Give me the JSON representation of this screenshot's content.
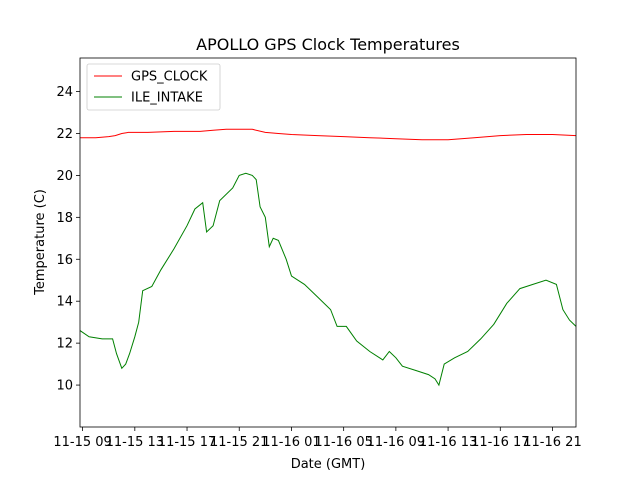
{
  "chart_data": {
    "type": "line",
    "title": "APOLLO GPS Clock Temperatures",
    "xlabel": "Date (GMT)",
    "ylabel": "Temperature (C)",
    "ylim": [
      8.0,
      25.6
    ],
    "xlim_hours_since_11_15_00": [
      8.8,
      46.8
    ],
    "x_tick_labels": [
      "11-15 09",
      "11-15 13",
      "11-15 17",
      "11-15 21",
      "11-16 01",
      "11-16 05",
      "11-16 09",
      "11-16 13",
      "11-16 17",
      "11-16 21"
    ],
    "x_tick_hours": [
      9,
      13,
      17,
      21,
      25,
      29,
      33,
      37,
      41,
      45
    ],
    "y_ticks": [
      10,
      12,
      14,
      16,
      18,
      20,
      22,
      24
    ],
    "legend_position": "upper-left",
    "grid": false,
    "series": [
      {
        "name": "GPS_CLOCK",
        "color": "#ff0000",
        "points": [
          [
            8.8,
            21.8
          ],
          [
            10,
            21.8
          ],
          [
            11,
            21.85
          ],
          [
            11.5,
            21.9
          ],
          [
            12,
            22.0
          ],
          [
            12.5,
            22.05
          ],
          [
            13,
            22.05
          ],
          [
            14,
            22.05
          ],
          [
            16,
            22.1
          ],
          [
            18,
            22.1
          ],
          [
            19,
            22.15
          ],
          [
            20,
            22.2
          ],
          [
            21,
            22.2
          ],
          [
            22,
            22.2
          ],
          [
            23,
            22.05
          ],
          [
            24,
            22.0
          ],
          [
            25,
            21.95
          ],
          [
            27,
            21.9
          ],
          [
            29,
            21.85
          ],
          [
            31,
            21.8
          ],
          [
            33,
            21.75
          ],
          [
            35,
            21.7
          ],
          [
            37,
            21.7
          ],
          [
            39,
            21.8
          ],
          [
            41,
            21.9
          ],
          [
            43,
            21.95
          ],
          [
            45,
            21.95
          ],
          [
            46.8,
            21.9
          ]
        ]
      },
      {
        "name": "ILE_INTAKE",
        "color": "#008000",
        "points": [
          [
            8.8,
            12.6
          ],
          [
            9.5,
            12.3
          ],
          [
            10.5,
            12.2
          ],
          [
            11.3,
            12.2
          ],
          [
            11.6,
            11.5
          ],
          [
            12.0,
            10.8
          ],
          [
            12.3,
            11.0
          ],
          [
            12.6,
            11.5
          ],
          [
            13.0,
            12.3
          ],
          [
            13.3,
            13.0
          ],
          [
            13.6,
            14.5
          ],
          [
            14.3,
            14.7
          ],
          [
            15.0,
            15.5
          ],
          [
            16.0,
            16.5
          ],
          [
            17.0,
            17.6
          ],
          [
            17.6,
            18.4
          ],
          [
            18.2,
            18.7
          ],
          [
            18.5,
            17.3
          ],
          [
            19.0,
            17.6
          ],
          [
            19.5,
            18.8
          ],
          [
            20.5,
            19.4
          ],
          [
            21.0,
            20.0
          ],
          [
            21.5,
            20.1
          ],
          [
            22.0,
            20.0
          ],
          [
            22.3,
            19.8
          ],
          [
            22.6,
            18.5
          ],
          [
            23.0,
            18.0
          ],
          [
            23.3,
            16.6
          ],
          [
            23.6,
            17.0
          ],
          [
            24.0,
            16.9
          ],
          [
            24.6,
            16.0
          ],
          [
            25.0,
            15.2
          ],
          [
            26.0,
            14.8
          ],
          [
            27.0,
            14.2
          ],
          [
            28.0,
            13.6
          ],
          [
            28.5,
            12.8
          ],
          [
            29.2,
            12.8
          ],
          [
            30.0,
            12.1
          ],
          [
            31.0,
            11.6
          ],
          [
            32.0,
            11.2
          ],
          [
            32.5,
            11.6
          ],
          [
            33.0,
            11.3
          ],
          [
            33.5,
            10.9
          ],
          [
            34.5,
            10.7
          ],
          [
            35.5,
            10.5
          ],
          [
            36.0,
            10.3
          ],
          [
            36.3,
            10.0
          ],
          [
            36.7,
            11.0
          ],
          [
            37.5,
            11.3
          ],
          [
            38.5,
            11.6
          ],
          [
            39.5,
            12.2
          ],
          [
            40.5,
            12.9
          ],
          [
            41.5,
            13.9
          ],
          [
            42.5,
            14.6
          ],
          [
            43.5,
            14.8
          ],
          [
            44.5,
            15.0
          ],
          [
            45.3,
            14.8
          ],
          [
            45.8,
            13.6
          ],
          [
            46.3,
            13.1
          ],
          [
            46.8,
            12.8
          ]
        ]
      }
    ]
  }
}
